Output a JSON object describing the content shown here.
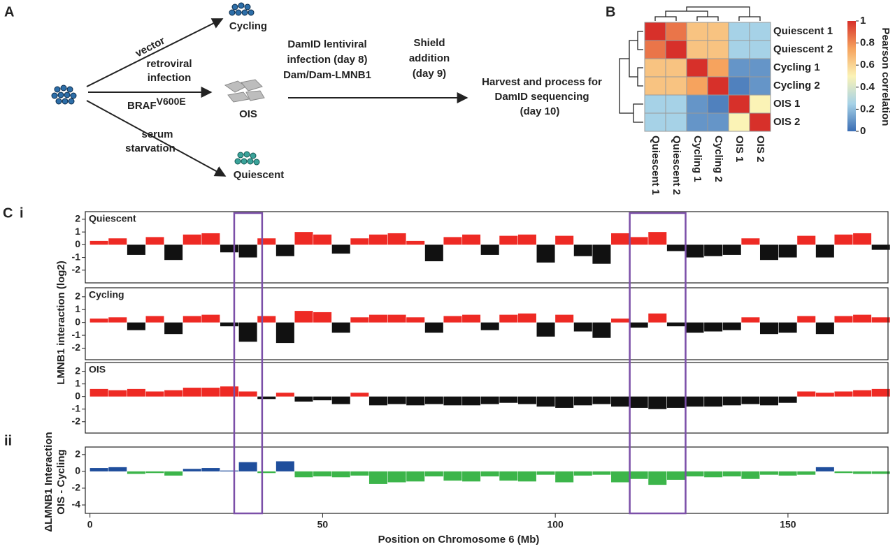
{
  "panel_labels": {
    "a": "A",
    "b": "B",
    "c": "C",
    "ci": "i",
    "cii": "ii"
  },
  "diagram": {
    "vector": "vector",
    "cycling": "Cycling",
    "retroviral": [
      "retroviral",
      "infection"
    ],
    "braf": "BRAF",
    "braf_sup": "V600E",
    "ois": "OIS",
    "serum": [
      "serum",
      "starvation"
    ],
    "quiescent": "Quiescent",
    "damid": [
      "DamID lentiviral",
      "infection (day 8)",
      "Dam/Dam-LMNB1"
    ],
    "shield": [
      "Shield",
      "addition",
      "(day 9)"
    ],
    "harvest": [
      "Harvest and process for",
      "DamID sequencing",
      "(day 10)"
    ]
  },
  "chart_data": [
    {
      "type": "heatmap",
      "labels": [
        "Quiescent 1",
        "Quiescent 2",
        "Cycling 1",
        "Cycling 2",
        "OIS 1",
        "OIS 2"
      ],
      "values": [
        [
          1,
          0.85,
          0.65,
          0.65,
          0.25,
          0.25
        ],
        [
          0.85,
          1,
          0.65,
          0.65,
          0.25,
          0.25
        ],
        [
          0.65,
          0.65,
          1,
          0.75,
          0.1,
          0.1
        ],
        [
          0.65,
          0.65,
          0.75,
          1,
          0.05,
          0.1
        ],
        [
          0.25,
          0.25,
          0.1,
          0.05,
          1,
          0.5
        ],
        [
          0.25,
          0.25,
          0.1,
          0.1,
          0.5,
          1
        ]
      ],
      "colorbar_label": "Pearson correlation",
      "clim": [
        0,
        1
      ],
      "cticks": [
        0,
        0.2,
        0.4,
        0.6,
        0.8,
        1
      ],
      "colorscale": [
        [
          0,
          "#3a6db4"
        ],
        [
          0.25,
          "#a6d2e7"
        ],
        [
          0.5,
          "#fbf3b6"
        ],
        [
          0.75,
          "#f6a35e"
        ],
        [
          1,
          "#d7302a"
        ]
      ]
    },
    {
      "type": "track",
      "xlabel": "Position on Chromosome 6 (Mb)",
      "ylabel": "LMNB1 interaction (log2)",
      "ylabel2": [
        "ΔLMNB1 Interaction",
        "OIS - Cycling"
      ],
      "xlim": [
        -1,
        171.5
      ],
      "xticks": [
        0,
        50,
        100,
        150
      ],
      "bins": [
        0,
        4,
        8,
        12,
        16,
        20,
        24,
        28,
        32,
        36,
        40,
        44,
        48,
        52,
        56,
        60,
        64,
        68,
        72,
        76,
        80,
        84,
        88,
        92,
        96,
        100,
        104,
        108,
        112,
        116,
        120,
        124,
        128,
        132,
        136,
        140,
        144,
        148,
        152,
        156,
        160,
        164,
        168,
        172
      ],
      "highlight_regions": [
        [
          31,
          37
        ],
        [
          116,
          128
        ]
      ],
      "highlight_color": "#7b4fa8",
      "tracks": [
        {
          "name": "Quiescent",
          "pos_color": "#ee2a24",
          "neg_color": "#111111",
          "ylim": [
            -3,
            2.6
          ],
          "yticks": [
            -2,
            -1,
            0,
            1,
            2
          ],
          "values": [
            0.3,
            0.5,
            -0.8,
            0.6,
            -1.2,
            0.8,
            0.9,
            -0.6,
            -1.0,
            0.5,
            -0.9,
            1.0,
            0.8,
            -0.7,
            0.5,
            0.8,
            0.9,
            0.3,
            -1.3,
            0.6,
            0.8,
            -0.8,
            0.7,
            0.8,
            -1.4,
            0.7,
            -0.9,
            -1.5,
            0.9,
            0.6,
            1.0,
            -0.5,
            -1.0,
            -0.9,
            -0.8,
            0.5,
            -1.2,
            -1.0,
            0.7,
            -1.0,
            0.8,
            0.9,
            -0.4
          ]
        },
        {
          "name": "Cycling",
          "pos_color": "#ee2a24",
          "neg_color": "#111111",
          "ylim": [
            -2.9,
            2.7
          ],
          "yticks": [
            -2,
            -1,
            0,
            1,
            2
          ],
          "values": [
            0.3,
            0.4,
            -0.6,
            0.5,
            -0.9,
            0.5,
            0.6,
            -0.3,
            -1.5,
            0.5,
            -1.6,
            0.9,
            0.8,
            -0.8,
            0.4,
            0.6,
            0.6,
            0.4,
            -0.8,
            0.5,
            0.6,
            -0.6,
            0.6,
            0.7,
            -1.1,
            0.6,
            -0.7,
            -1.2,
            0.3,
            -0.4,
            0.7,
            -0.3,
            -0.8,
            -0.7,
            -0.6,
            0.4,
            -0.9,
            -0.8,
            0.5,
            -0.9,
            0.5,
            0.6,
            0.4
          ]
        },
        {
          "name": "OIS",
          "pos_color": "#ee2a24",
          "neg_color": "#111111",
          "ylim": [
            -2.9,
            2.7
          ],
          "yticks": [
            -2,
            -1,
            0,
            1,
            2
          ],
          "values": [
            0.6,
            0.5,
            0.6,
            0.4,
            0.5,
            0.7,
            0.7,
            0.8,
            0.4,
            -0.2,
            0.3,
            -0.4,
            -0.3,
            -0.6,
            0.3,
            -0.7,
            -0.6,
            -0.7,
            -0.6,
            -0.7,
            -0.7,
            -0.6,
            -0.5,
            -0.6,
            -0.8,
            -0.9,
            -0.7,
            -0.6,
            -0.8,
            -0.9,
            -1.0,
            -0.9,
            -0.8,
            -0.8,
            -0.7,
            -0.6,
            -0.7,
            -0.5,
            0.4,
            0.3,
            0.4,
            0.5,
            0.6
          ]
        },
        {
          "pos_color": "#1f4e9c",
          "neg_color": "#3cb54a",
          "ylim": [
            -5,
            2.9
          ],
          "yticks": [
            -4,
            -2,
            0,
            2
          ],
          "values": [
            0.4,
            0.5,
            -0.3,
            -0.2,
            -0.5,
            0.3,
            0.4,
            0.1,
            1.1,
            -0.2,
            1.2,
            -0.7,
            -0.6,
            -0.7,
            -0.5,
            -1.5,
            -1.3,
            -1.2,
            -0.6,
            -1.1,
            -1.2,
            -0.6,
            -1.1,
            -1.2,
            -0.4,
            -1.3,
            -0.5,
            -0.4,
            -1.3,
            -0.9,
            -1.6,
            -1.0,
            -0.6,
            -0.7,
            -0.6,
            -0.9,
            -0.4,
            -0.5,
            -0.4,
            0.5,
            -0.2,
            -0.3,
            -0.3
          ]
        }
      ]
    }
  ]
}
